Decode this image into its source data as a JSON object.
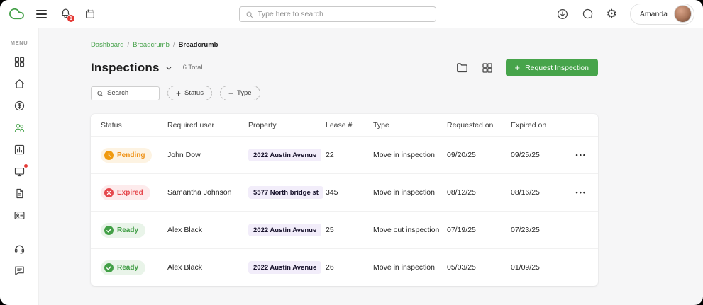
{
  "topbar": {
    "search_placeholder": "Type here to search",
    "notification_count": "1",
    "user_name": "Amanda",
    "icons": [
      "cloud-logo",
      "hamburger-menu",
      "notifications-bell",
      "calendar",
      "search",
      "download-circle",
      "messages-bubble",
      "settings-gear"
    ]
  },
  "sidebar": {
    "menu_label": "MENU",
    "items": [
      {
        "icon": "dashboard-grid",
        "active": false,
        "badge": false
      },
      {
        "icon": "home",
        "active": false,
        "badge": false
      },
      {
        "icon": "payments-dollar",
        "active": false,
        "badge": false
      },
      {
        "icon": "people",
        "active": true,
        "badge": false
      },
      {
        "icon": "reports-chart",
        "active": false,
        "badge": false
      },
      {
        "icon": "campaign-monitor",
        "active": false,
        "badge": true
      },
      {
        "icon": "document",
        "active": false,
        "badge": false
      },
      {
        "icon": "id-card",
        "active": false,
        "badge": false
      }
    ],
    "bottom_items": [
      {
        "icon": "support-headset",
        "active": false,
        "badge": false
      },
      {
        "icon": "feedback-chat",
        "active": false,
        "badge": false
      }
    ]
  },
  "breadcrumb": [
    "Dashboard",
    "Breadcrumb",
    "Breadcrumb"
  ],
  "page": {
    "title": "Inspections",
    "total_label": "6 Total",
    "request_button_label": "Request Inspection",
    "filter_search_placeholder": "Search",
    "filter_chips": [
      "Status",
      "Type"
    ]
  },
  "table": {
    "columns": [
      "Status",
      "Required user",
      "Property",
      "Lease #",
      "Type",
      "Requested on",
      "Expired on"
    ],
    "rows": [
      {
        "status": "Pending",
        "status_variant": "pending",
        "required_user": "John Dow",
        "property": "2022 Austin Avenue",
        "lease": "22",
        "type": "Move in inspection",
        "requested_on": "09/20/25",
        "expired_on": "09/25/25",
        "menu": true
      },
      {
        "status": "Expired",
        "status_variant": "expired",
        "required_user": "Samantha Johnson",
        "property": "5577 North bridge st",
        "lease": "345",
        "type": "Move in inspection",
        "requested_on": "08/12/25",
        "expired_on": "08/16/25",
        "menu": true
      },
      {
        "status": "Ready",
        "status_variant": "ready",
        "required_user": "Alex Black",
        "property": "2022 Austin Avenue",
        "lease": "25",
        "type": "Move out inspection",
        "requested_on": "07/19/25",
        "expired_on": "07/23/25",
        "menu": false
      },
      {
        "status": "Ready",
        "status_variant": "ready",
        "required_user": "Alex Black",
        "property": "2022 Austin Avenue",
        "lease": "26",
        "type": "Move in inspection",
        "requested_on": "05/03/25",
        "expired_on": "01/09/25",
        "menu": false
      }
    ]
  },
  "colors": {
    "brand_green": "#43a047",
    "button_green": "#47a44b",
    "pending_text": "#ee9013",
    "pending_bg": "#fdf3e2",
    "expired_text": "#e5484d",
    "expired_bg": "#fdebec",
    "ready_text": "#3f9d44",
    "ready_bg": "#e9f4e9",
    "property_pill_bg": "#f2edfa",
    "notification_red": "#e53935"
  }
}
